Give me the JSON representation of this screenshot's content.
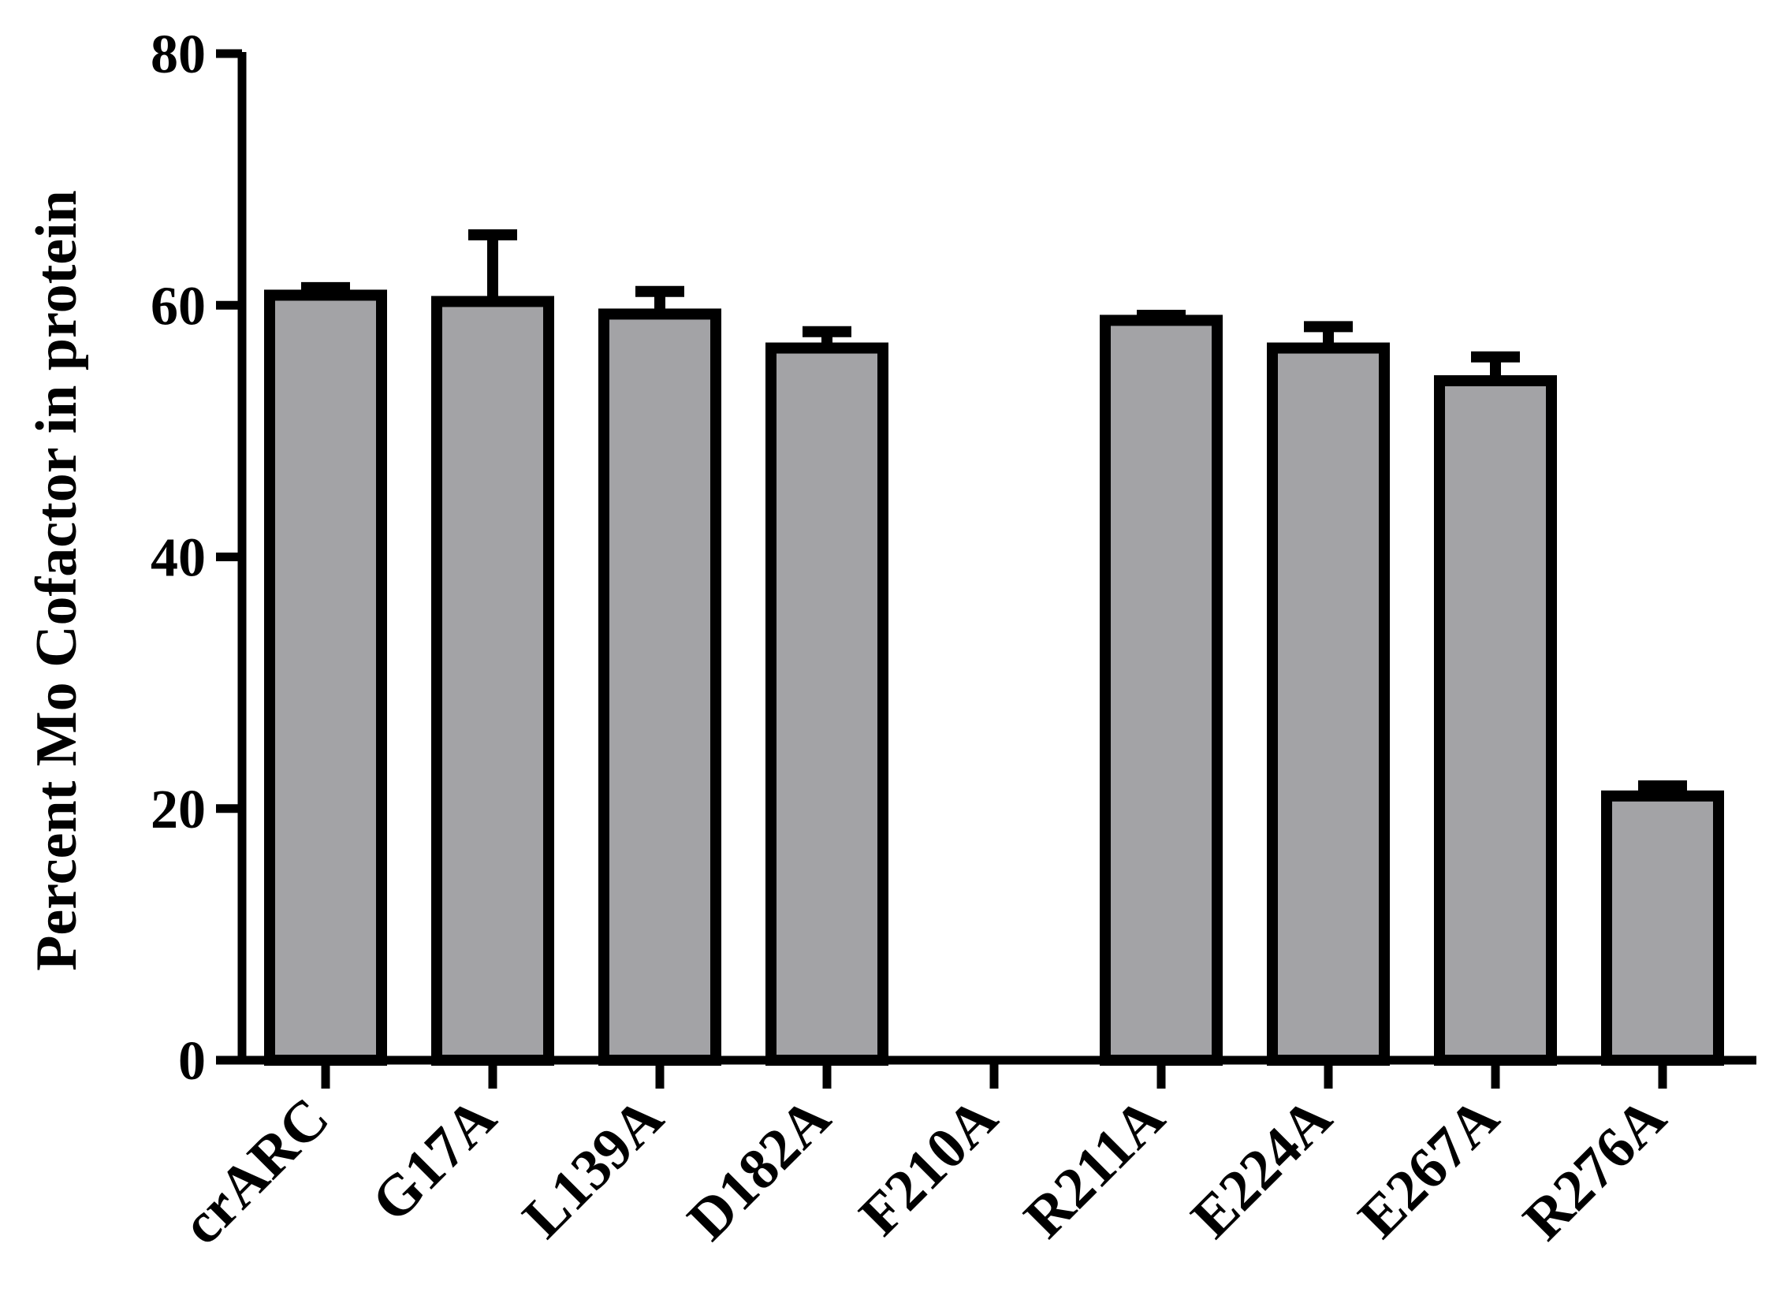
{
  "chart_data": {
    "type": "bar",
    "title": "",
    "xlabel": "",
    "ylabel": "Percent Mo Cofactor in protein",
    "ylim": [
      0,
      80
    ],
    "yticks": [
      0,
      20,
      40,
      60,
      80
    ],
    "grid": false,
    "legend": "none",
    "categories": [
      "crARC",
      "G17A",
      "L139A",
      "D182A",
      "F210A",
      "R211A",
      "E224A",
      "E267A",
      "R276A"
    ],
    "values": [
      60.8,
      60.3,
      59.3,
      56.6,
      0,
      58.8,
      56.6,
      54.0,
      21.0
    ],
    "error_upper": [
      0.6,
      5.3,
      1.8,
      1.3,
      0,
      0.4,
      1.7,
      1.9,
      0.8
    ],
    "colors": {
      "bar_fill": "#a3a3a6",
      "bar_stroke": "#000000",
      "axis": "#000000"
    }
  }
}
